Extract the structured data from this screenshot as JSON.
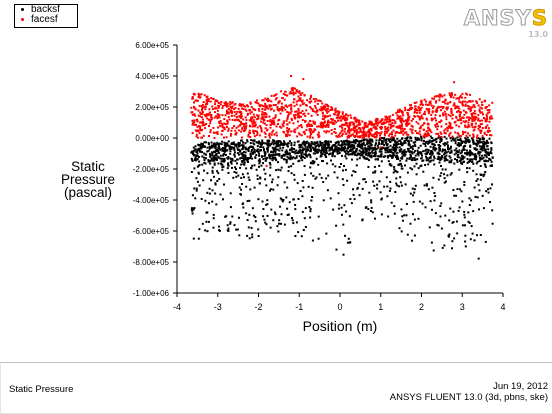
{
  "legend": [
    {
      "label": "backsf",
      "color": "#000000"
    },
    {
      "label": "facesf",
      "color": "#ff0000"
    }
  ],
  "logo": {
    "text": "ANSYS",
    "version": "13.0"
  },
  "footer": {
    "left_text": "Static Pressure",
    "date": "Jun 19, 2012",
    "product": "ANSYS FLUENT 13.0 (3d, pbns, ske)"
  },
  "chart_data": {
    "type": "scatter",
    "title": "",
    "xlabel": "Position (m)",
    "ylabel_lines": [
      "Static",
      "Pressure",
      "(pascal)"
    ],
    "xlim": [
      -4,
      4
    ],
    "ylim": [
      -1000000,
      600000
    ],
    "x_ticks": [
      -4,
      -3,
      -2,
      -1,
      0,
      1,
      2,
      3,
      4
    ],
    "x_tick_labels": [
      "-4",
      "-3",
      "-2",
      "-1",
      "0",
      "1",
      "2",
      "3",
      "4"
    ],
    "y_ticks": [
      -1000000,
      -800000,
      -600000,
      -400000,
      -200000,
      0,
      200000,
      400000,
      600000
    ],
    "y_tick_labels": [
      "-1.00e+06",
      "-8.00e+05",
      "-6.00e+05",
      "-4.00e+05",
      "-2.00e+05",
      "0.00e+00",
      "2.00e+05",
      "4.00e+05",
      "6.00e+05"
    ],
    "grid": false,
    "legend_position": "top-left",
    "series": [
      {
        "name": "facesf",
        "color": "#ff0000",
        "x_range": [
          -3.65,
          3.75
        ],
        "band_profile": [
          {
            "x": -3.6,
            "low": 0,
            "high": 300000
          },
          {
            "x": -3.0,
            "low": 0,
            "high": 250000
          },
          {
            "x": -2.4,
            "low": 0,
            "high": 220000
          },
          {
            "x": -1.8,
            "low": 0,
            "high": 260000
          },
          {
            "x": -1.2,
            "low": 0,
            "high": 330000
          },
          {
            "x": -0.6,
            "low": 0,
            "high": 260000
          },
          {
            "x": 0.0,
            "low": 0,
            "high": 180000
          },
          {
            "x": 0.6,
            "low": 0,
            "high": 100000
          },
          {
            "x": 1.2,
            "low": 0,
            "high": 150000
          },
          {
            "x": 1.8,
            "low": 0,
            "high": 230000
          },
          {
            "x": 2.4,
            "low": 0,
            "high": 280000
          },
          {
            "x": 3.0,
            "low": 0,
            "high": 300000
          },
          {
            "x": 3.7,
            "low": 0,
            "high": 230000
          }
        ],
        "outliers": [
          {
            "x": -1.2,
            "y": 400000
          },
          {
            "x": -0.9,
            "y": 380000
          },
          {
            "x": 2.8,
            "y": 360000
          },
          {
            "x": 1.0,
            "y": -60000
          },
          {
            "x": -1.8,
            "y": -180000
          }
        ]
      },
      {
        "name": "backsf",
        "color": "#000000",
        "x_range": [
          -3.65,
          3.75
        ],
        "band_profile": [
          {
            "x": -3.6,
            "low": -150000,
            "high": -30000
          },
          {
            "x": -2.8,
            "low": -150000,
            "high": -20000
          },
          {
            "x": -2.0,
            "low": -150000,
            "high": -10000
          },
          {
            "x": -1.0,
            "low": -130000,
            "high": -20000
          },
          {
            "x": 0.0,
            "low": -100000,
            "high": -20000
          },
          {
            "x": 1.0,
            "low": -120000,
            "high": 0
          },
          {
            "x": 2.0,
            "low": -150000,
            "high": 10000
          },
          {
            "x": 3.0,
            "low": -150000,
            "high": 10000
          },
          {
            "x": 3.7,
            "low": -150000,
            "high": 0
          }
        ],
        "scatter_tails": [
          {
            "x": -3.6,
            "min": -780000
          },
          {
            "x": -3.1,
            "min": -600000
          },
          {
            "x": -2.7,
            "min": -650000
          },
          {
            "x": -2.2,
            "min": -680000
          },
          {
            "x": -1.7,
            "min": -580000
          },
          {
            "x": -1.3,
            "min": -650000
          },
          {
            "x": -0.8,
            "min": -700000
          },
          {
            "x": -0.4,
            "min": -650000
          },
          {
            "x": 0.0,
            "min": -800000
          },
          {
            "x": 0.5,
            "min": -550000
          },
          {
            "x": 1.0,
            "min": -520000
          },
          {
            "x": 1.5,
            "min": -620000
          },
          {
            "x": 2.0,
            "min": -700000
          },
          {
            "x": 2.5,
            "min": -750000
          },
          {
            "x": 3.0,
            "min": -680000
          },
          {
            "x": 3.5,
            "min": -820000
          },
          {
            "x": 3.7,
            "min": -600000
          }
        ]
      }
    ]
  }
}
